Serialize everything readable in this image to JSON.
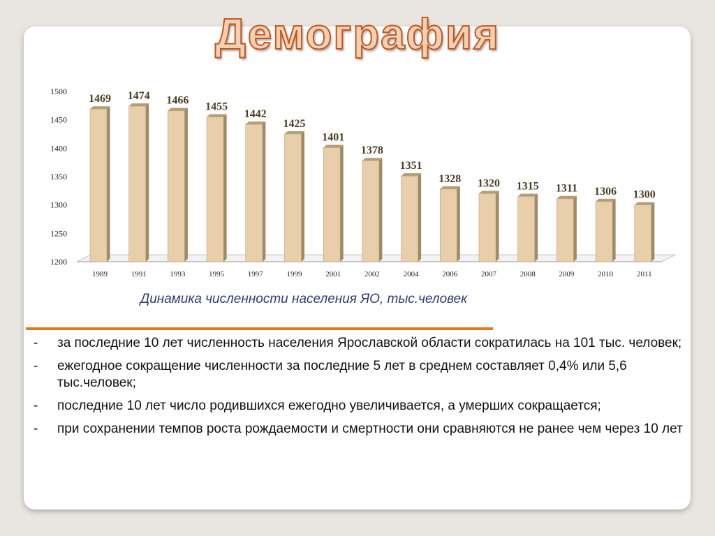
{
  "slide": {
    "title": "Демография",
    "caption": "Динамика численности населения ЯО, тыс.человек",
    "bullets": [
      "за последние 10 лет численность населения Ярославской области сократилась на 101 тыс. человек;",
      "ежегодное сокращение численности за последние 5 лет в среднем составляет 0,4% или 5,6 тыс.человек;",
      "последние 10 лет число родившихся ежегодно увеличивается, а умерших сокращается;",
      "при сохранении темпов роста рождаемости и смертности они сравняются не ранее чем через 10 лет"
    ],
    "bullet_marker": "-",
    "colors": {
      "title_fill": "#f4d0b3",
      "title_stroke": "#c0571f",
      "caption": "#2c3e74",
      "divider": "#e07a1c"
    }
  },
  "chart_data": {
    "type": "bar",
    "categories": [
      "1989",
      "1991",
      "1993",
      "1995",
      "1997",
      "1999",
      "2001",
      "2002",
      "2004",
      "2006",
      "2007",
      "2008",
      "2009",
      "2010",
      "2011"
    ],
    "values": [
      1469,
      1474,
      1466,
      1455,
      1442,
      1425,
      1401,
      1378,
      1351,
      1328,
      1320,
      1315,
      1311,
      1306,
      1300
    ],
    "ylim": [
      1200,
      1500
    ],
    "yticks": [
      1200,
      1250,
      1300,
      1350,
      1400,
      1450,
      1500
    ],
    "grid": false,
    "legend": "none",
    "style": "3d-column",
    "colors": {
      "bar_front": "#e8cfa9",
      "bar_side": "#a08a66",
      "bar_top": "#b49e79",
      "label": "#4a3f24"
    }
  }
}
